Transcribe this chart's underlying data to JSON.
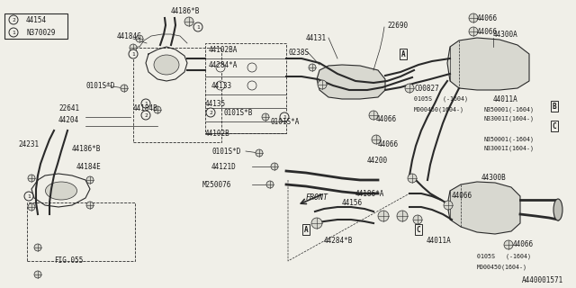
{
  "bg_color": "#f0efe8",
  "line_color": "#2a2a2a",
  "text_color": "#1a1a1a",
  "part_id": "A440001571",
  "legend": [
    [
      "1",
      "N370029"
    ],
    [
      "2",
      "44154"
    ]
  ],
  "figsize": [
    6.4,
    3.2
  ],
  "dpi": 100
}
